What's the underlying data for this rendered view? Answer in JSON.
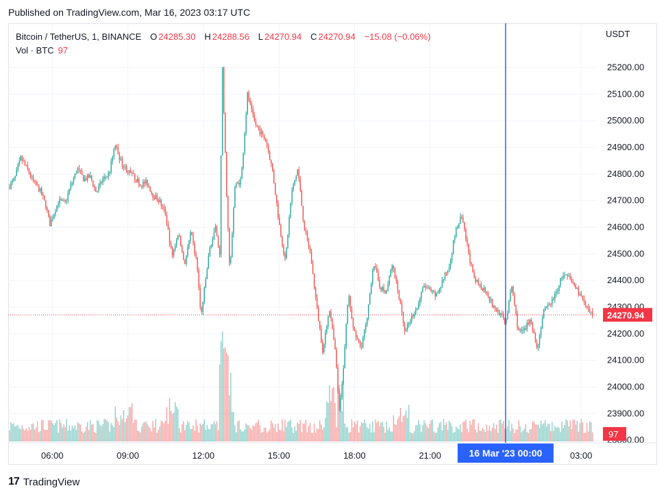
{
  "published": "Published on TradingView.com, Mar 16, 2023 03:17 UTC",
  "legend": {
    "symbol": "Bitcoin / TetherUS, 1, BINANCE",
    "o_label": "O",
    "o": "24285.30",
    "h_label": "H",
    "h": "24288.56",
    "l_label": "L",
    "l": "24270.94",
    "c_label": "C",
    "c": "24270.94",
    "change": "−15.08 (−0.06%)"
  },
  "vol_legend": {
    "label": "Vol · BTC",
    "value": "97"
  },
  "footer": {
    "logo": "17",
    "brand": "TradingView"
  },
  "colors": {
    "up": "#26a69a",
    "down": "#ef5350",
    "crosshair": "#2962ff",
    "price_tag": "#f23645"
  },
  "chart_data": {
    "type": "candlestick",
    "title": "Bitcoin / TetherUS, 1, BINANCE",
    "currency": "USDT",
    "ylim": [
      23790,
      25320
    ],
    "y_ticks": [
      "25200.00",
      "25100.00",
      "25000.00",
      "24900.00",
      "24800.00",
      "24700.00",
      "24600.00",
      "24500.00",
      "24400.00",
      "24300.00",
      "24200.00",
      "24100.00",
      "24000.00",
      "23900.00",
      "23800.00"
    ],
    "x_ticks": [
      "06:00",
      "09:00",
      "12:00",
      "15:00",
      "18:00",
      "21:00",
      "00:00",
      "03:00"
    ],
    "last_price": "24270.94",
    "last_volume": "97",
    "crosshair": {
      "label": "16 Mar '23   00:00",
      "x_hours": 24.0
    },
    "grid": true,
    "x_range_hours": [
      4.25,
      27.65
    ],
    "price_path": [
      [
        4.25,
        24750
      ],
      [
        4.5,
        24780
      ],
      [
        4.75,
        24860
      ],
      [
        5.0,
        24820
      ],
      [
        5.25,
        24770
      ],
      [
        5.5,
        24740
      ],
      [
        5.75,
        24680
      ],
      [
        5.9,
        24610
      ],
      [
        6.25,
        24700
      ],
      [
        6.5,
        24690
      ],
      [
        6.75,
        24760
      ],
      [
        7.0,
        24820
      ],
      [
        7.25,
        24780
      ],
      [
        7.5,
        24790
      ],
      [
        7.75,
        24730
      ],
      [
        8.0,
        24780
      ],
      [
        8.25,
        24800
      ],
      [
        8.5,
        24910
      ],
      [
        8.75,
        24840
      ],
      [
        9.0,
        24810
      ],
      [
        9.25,
        24790
      ],
      [
        9.5,
        24760
      ],
      [
        9.75,
        24770
      ],
      [
        10.0,
        24720
      ],
      [
        10.25,
        24700
      ],
      [
        10.5,
        24650
      ],
      [
        10.75,
        24490
      ],
      [
        11.0,
        24580
      ],
      [
        11.25,
        24460
      ],
      [
        11.5,
        24580
      ],
      [
        11.75,
        24460
      ],
      [
        11.9,
        24260
      ],
      [
        12.25,
        24520
      ],
      [
        12.5,
        24600
      ],
      [
        12.65,
        24500
      ],
      [
        12.75,
        25210
      ],
      [
        12.9,
        24780
      ],
      [
        13.05,
        24420
      ],
      [
        13.25,
        24750
      ],
      [
        13.5,
        24780
      ],
      [
        13.75,
        25100
      ],
      [
        14.0,
        25000
      ],
      [
        14.25,
        24960
      ],
      [
        14.5,
        24920
      ],
      [
        14.75,
        24810
      ],
      [
        15.0,
        24620
      ],
      [
        15.25,
        24470
      ],
      [
        15.5,
        24730
      ],
      [
        15.75,
        24820
      ],
      [
        16.0,
        24600
      ],
      [
        16.25,
        24500
      ],
      [
        16.5,
        24300
      ],
      [
        16.75,
        24130
      ],
      [
        17.0,
        24300
      ],
      [
        17.25,
        24120
      ],
      [
        17.4,
        23900
      ],
      [
        17.6,
        24120
      ],
      [
        17.75,
        24350
      ],
      [
        18.0,
        24200
      ],
      [
        18.25,
        24150
      ],
      [
        18.5,
        24250
      ],
      [
        18.75,
        24470
      ],
      [
        19.0,
        24380
      ],
      [
        19.25,
        24350
      ],
      [
        19.5,
        24460
      ],
      [
        19.75,
        24350
      ],
      [
        20.0,
        24200
      ],
      [
        20.25,
        24260
      ],
      [
        20.5,
        24300
      ],
      [
        20.75,
        24380
      ],
      [
        21.0,
        24360
      ],
      [
        21.25,
        24340
      ],
      [
        21.5,
        24400
      ],
      [
        21.75,
        24450
      ],
      [
        22.0,
        24580
      ],
      [
        22.25,
        24640
      ],
      [
        22.5,
        24520
      ],
      [
        22.75,
        24400
      ],
      [
        23.0,
        24380
      ],
      [
        23.25,
        24360
      ],
      [
        23.5,
        24300
      ],
      [
        23.75,
        24280
      ],
      [
        24.0,
        24240
      ],
      [
        24.25,
        24380
      ],
      [
        24.5,
        24210
      ],
      [
        24.75,
        24210
      ],
      [
        25.0,
        24260
      ],
      [
        25.25,
        24140
      ],
      [
        25.5,
        24280
      ],
      [
        25.75,
        24310
      ],
      [
        26.0,
        24350
      ],
      [
        26.25,
        24420
      ],
      [
        26.5,
        24410
      ],
      [
        26.75,
        24380
      ],
      [
        27.0,
        24340
      ],
      [
        27.25,
        24285
      ],
      [
        27.45,
        24270
      ]
    ]
  }
}
